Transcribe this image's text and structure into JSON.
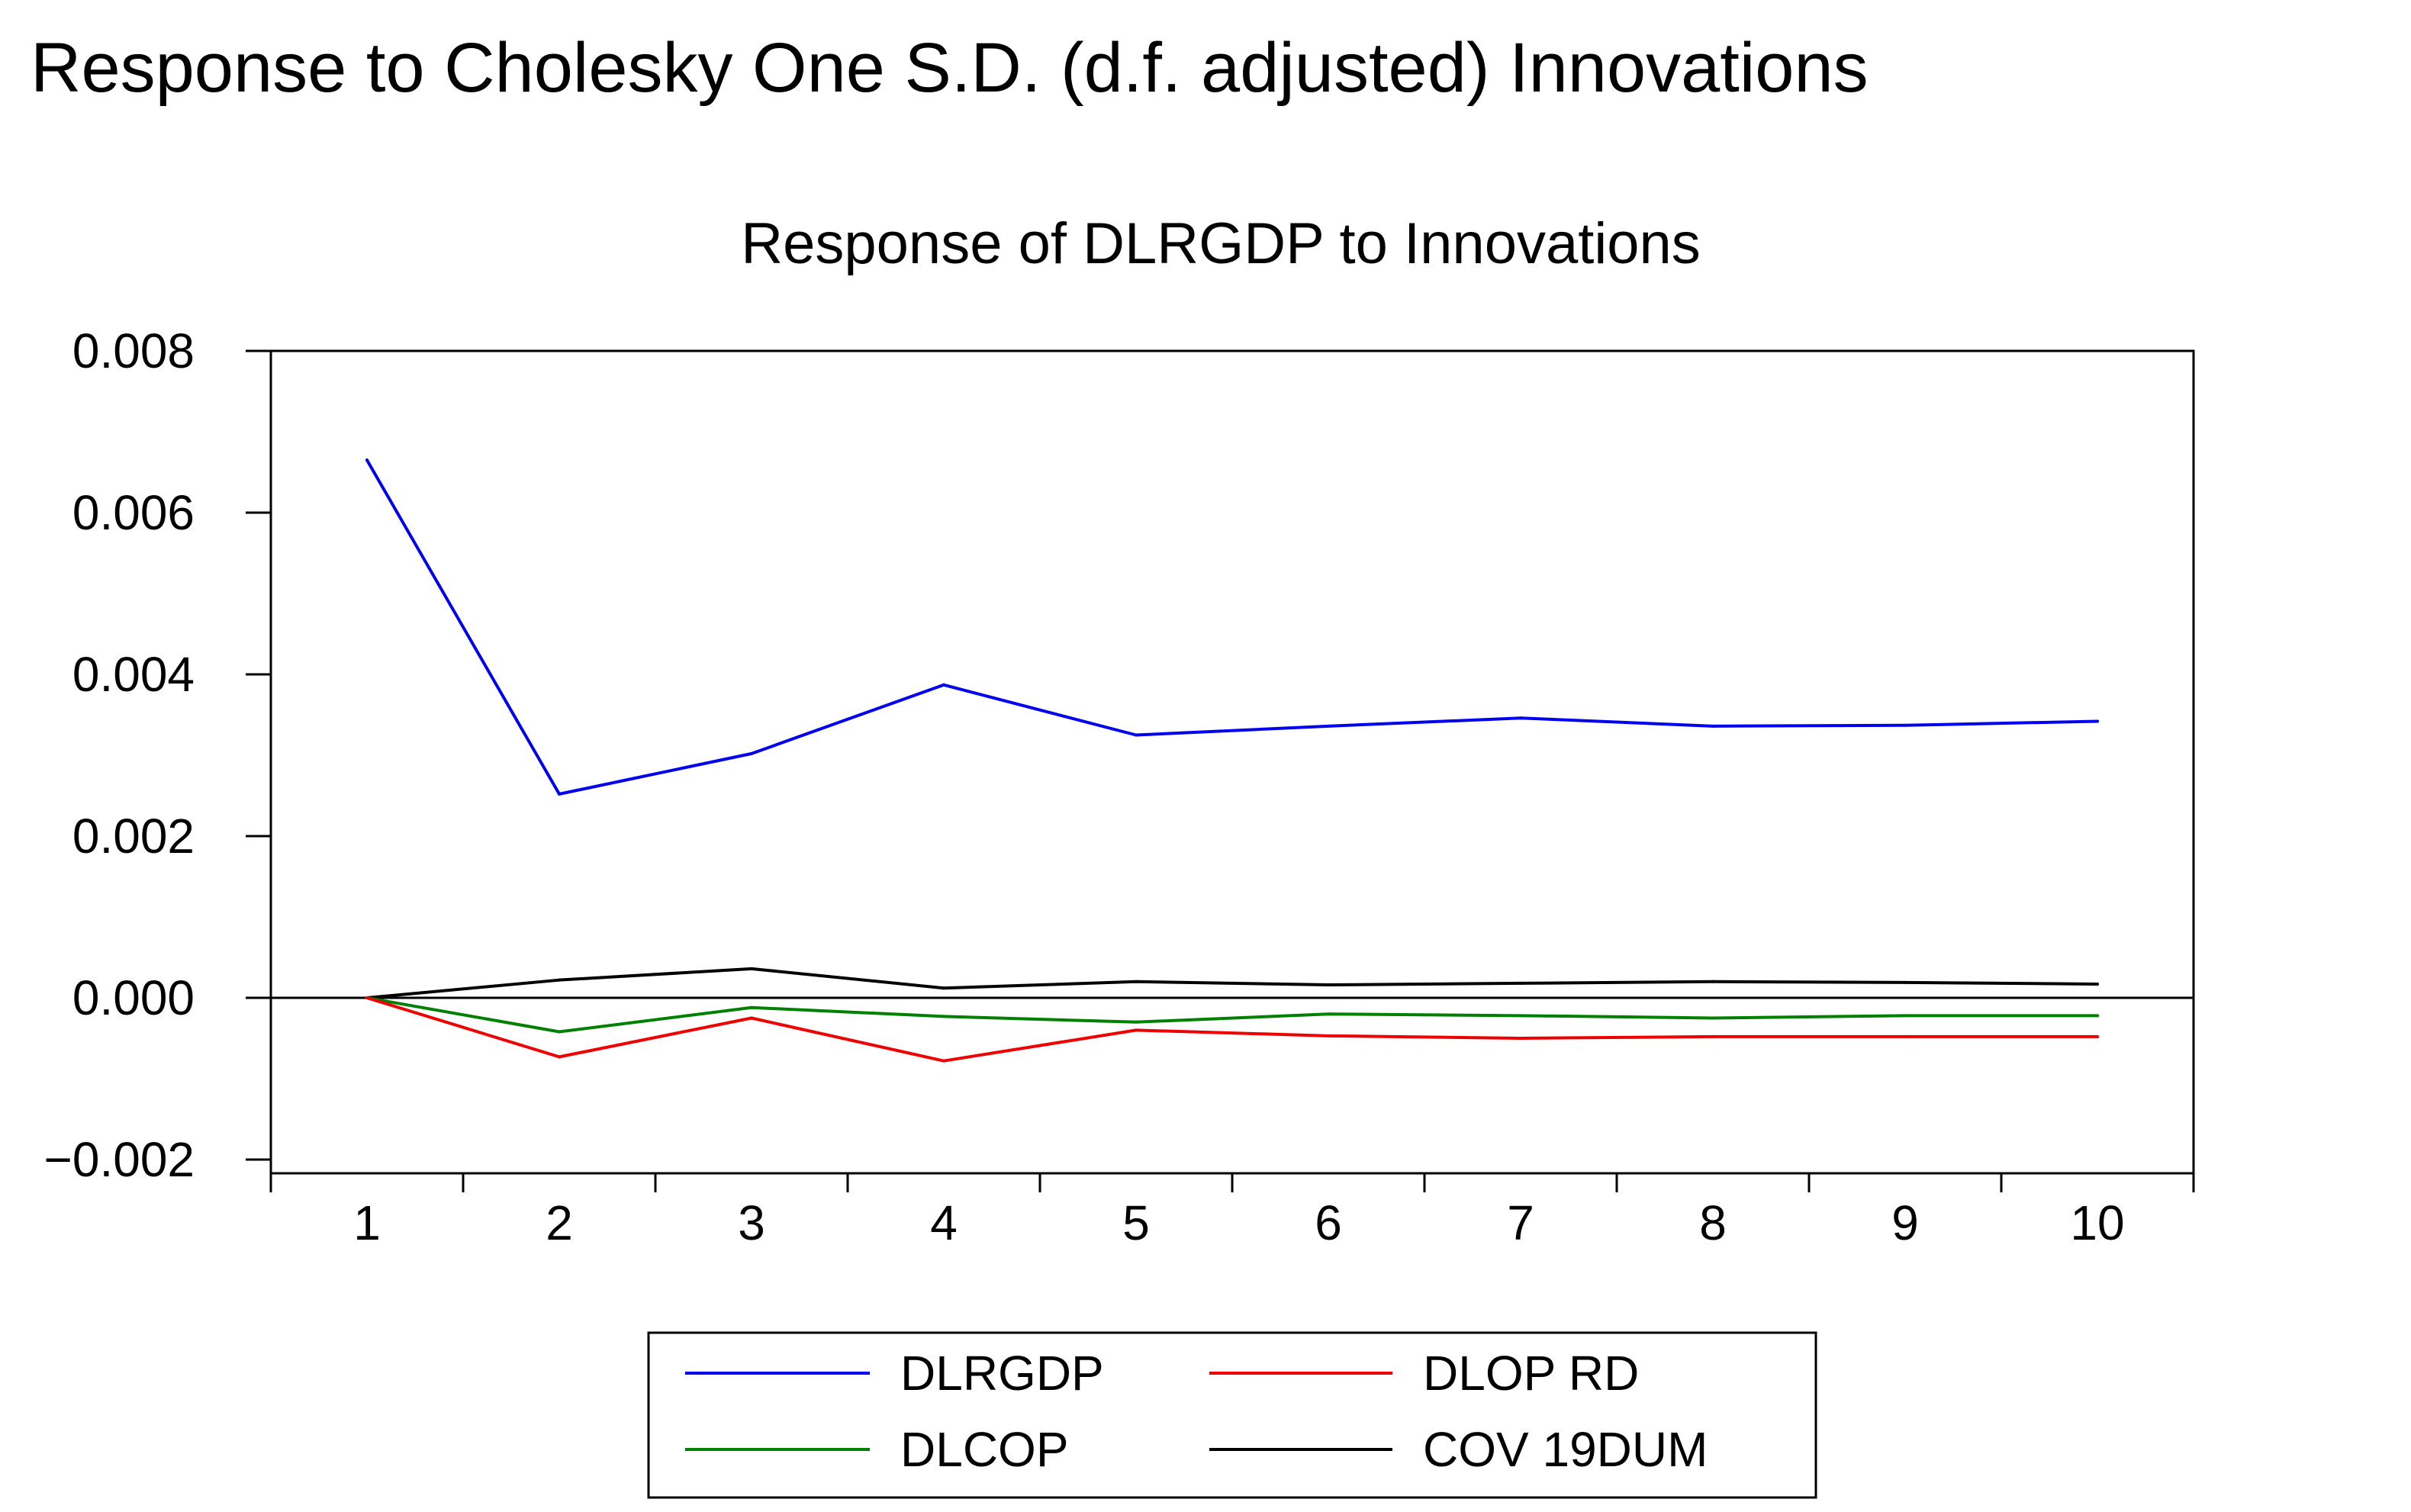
{
  "chart_data": {
    "type": "line",
    "title": "Response to Cholesky One S.D. (d.f. adjusted) Innovations",
    "subtitle": "Response of DLRGDP to Innovations",
    "xlabel": "",
    "ylabel": "",
    "categories": [
      "1",
      "2",
      "3",
      "4",
      "5",
      "6",
      "7",
      "8",
      "9",
      "10"
    ],
    "ylim": [
      -0.002,
      0.008
    ],
    "yticks": [
      "0.008",
      "0.006",
      "0.004",
      "0.002",
      "0.000",
      "−0.002"
    ],
    "ytick_values": [
      0.008,
      0.006,
      0.004,
      0.002,
      0.0,
      -0.002
    ],
    "zero_line": true,
    "grid": false,
    "legend_position": "bottom-center",
    "series": [
      {
        "name": "DLRGDP",
        "color": "#0000ee",
        "values": [
          0.00665,
          0.00252,
          0.00302,
          0.00387,
          0.00325,
          0.00336,
          0.00346,
          0.00336,
          0.00337,
          0.00342
        ]
      },
      {
        "name": "DLOP RD",
        "color": "#ee0000",
        "values": [
          0.0,
          -0.00073,
          -0.00025,
          -0.00078,
          -0.0004,
          -0.00047,
          -0.0005,
          -0.00048,
          -0.00048,
          -0.00048
        ]
      },
      {
        "name": "DLCOP",
        "color": "#008000",
        "values": [
          0.0,
          -0.00042,
          -0.00012,
          -0.00023,
          -0.0003,
          -0.0002,
          -0.00022,
          -0.00025,
          -0.00022,
          -0.00022
        ]
      },
      {
        "name": "COV 19DUM",
        "color": "#000000",
        "values": [
          0.0,
          0.00022,
          0.00036,
          0.00012,
          0.0002,
          0.00016,
          0.00018,
          0.0002,
          0.00019,
          0.00017
        ]
      }
    ]
  }
}
